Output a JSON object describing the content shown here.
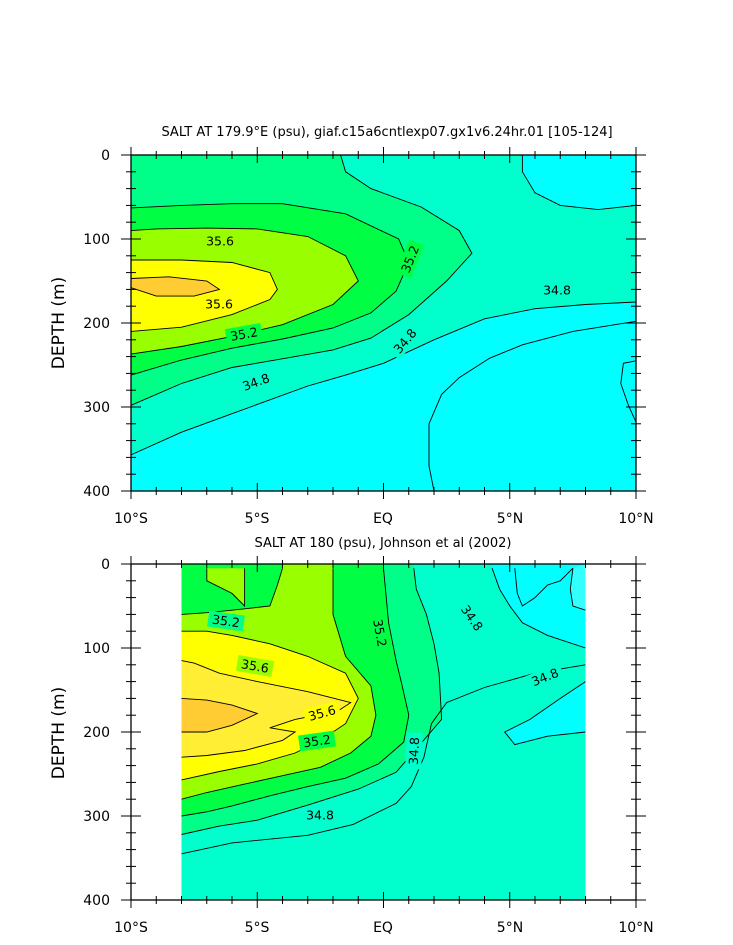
{
  "colors": {
    "below_34_8": "#00ffff",
    "34_8_to_35_0": "#00ffcc",
    "35_0_to_35_2": "#00ff88",
    "35_2_to_35_4": "#00ff44",
    "35_4_to_35_6": "#99ff00",
    "35_6_to_35_8": "#ffff00",
    "above_35_8": "#ffcc33",
    "above_34_8_top": "#33ffff",
    "contour_line": "#000000"
  },
  "chart_data": [
    {
      "type": "contour",
      "title": "SALT AT 179.9°E (psu), giaf.c15a6cntlexp07.gx1v6.24hr.01 [105-124]",
      "xlabel": "",
      "ylabel": "DEPTH (m)",
      "x_unit": "latitude",
      "xlim": [
        -10,
        10
      ],
      "ylim": [
        400,
        0
      ],
      "x_ticks": [
        -10,
        -5,
        0,
        5,
        10
      ],
      "x_tick_labels": [
        "10°S",
        "5°S",
        "EQ",
        "5°N",
        "10°N"
      ],
      "y_ticks": [
        0,
        100,
        200,
        300,
        400
      ],
      "y_tick_labels": [
        "0",
        "100",
        "200",
        "300",
        "400"
      ],
      "data_extent_lat": [
        -10,
        10
      ],
      "contour_labels": [
        "35.6",
        "35.6",
        "35.2",
        "35.2",
        "34.8",
        "34.8",
        "34.8"
      ],
      "contours": [
        {
          "level": 34.8,
          "points": [
            [
              -10,
              357
            ],
            [
              -8,
              330
            ],
            [
              -6,
              308
            ],
            [
              -3,
              275
            ],
            [
              -1.5,
              262
            ],
            [
              0,
              248
            ],
            [
              2,
              220
            ],
            [
              4,
              195
            ],
            [
              6,
              183
            ],
            [
              8,
              178
            ],
            [
              10,
              175
            ]
          ]
        },
        {
          "level": 35.0,
          "points": [
            [
              -10,
              298
            ],
            [
              -8,
              272
            ],
            [
              -6,
              253
            ],
            [
              -3.5,
              240
            ],
            [
              -2,
              232
            ],
            [
              -0.5,
              218
            ],
            [
              1,
              190
            ],
            [
              2.5,
              150
            ],
            [
              3.5,
              117
            ],
            [
              3,
              90
            ],
            [
              1.5,
              62
            ],
            [
              -0.5,
              40
            ],
            [
              -1.5,
              20
            ],
            [
              -1.7,
              0
            ]
          ]
        },
        {
          "level": 35.2,
          "points": [
            [
              -10,
              262
            ],
            [
              -8,
              244
            ],
            [
              -6,
              230
            ],
            [
              -4,
              219
            ],
            [
              -2,
              206
            ],
            [
              -0.5,
              188
            ],
            [
              0.5,
              162
            ],
            [
              1,
              128
            ],
            [
              0.6,
              100
            ],
            [
              -1.5,
              70
            ],
            [
              -4,
              58
            ],
            [
              -6,
              58
            ],
            [
              -8,
              60
            ],
            [
              -10,
              63
            ]
          ]
        },
        {
          "level": 35.4,
          "points": [
            [
              -10,
              237
            ],
            [
              -8,
              228
            ],
            [
              -6,
              216
            ],
            [
              -4,
              202
            ],
            [
              -2,
              178
            ],
            [
              -1,
              150
            ],
            [
              -1.5,
              120
            ],
            [
              -3,
              97
            ],
            [
              -5,
              88
            ],
            [
              -7,
              87
            ],
            [
              -9,
              88
            ],
            [
              -10,
              90
            ]
          ]
        },
        {
          "level": 35.6,
          "points": [
            [
              -10,
              210
            ],
            [
              -8,
              205
            ],
            [
              -6,
              190
            ],
            [
              -4.5,
              172
            ],
            [
              -4.2,
              160
            ],
            [
              -4.5,
              140
            ],
            [
              -6,
              128
            ],
            [
              -8,
              125
            ],
            [
              -10,
              125
            ]
          ]
        },
        {
          "level": 35.8,
          "points": [
            [
              -10,
              158
            ],
            [
              -9,
              168
            ],
            [
              -7.5,
              168
            ],
            [
              -6.5,
              160
            ],
            [
              -7,
              150
            ],
            [
              -8.5,
              145
            ],
            [
              -10,
              147
            ]
          ]
        },
        {
          "level": 34.8,
          "points": [
            [
              10,
              60
            ],
            [
              8.5,
              65
            ],
            [
              7,
              60
            ],
            [
              6,
              45
            ],
            [
              5.5,
              20
            ],
            [
              5.5,
              0
            ]
          ]
        },
        {
          "level": 34.8,
          "points": [
            [
              2,
              400
            ],
            [
              1.8,
              370
            ],
            [
              1.8,
              320
            ],
            [
              2.3,
              285
            ],
            [
              3,
              265
            ],
            [
              4.2,
              242
            ],
            [
              5.5,
              226
            ],
            [
              7.5,
              210
            ],
            [
              10,
              198
            ]
          ]
        },
        {
          "level": 34.6,
          "points": [
            [
              10,
              245
            ],
            [
              9.5,
              248
            ],
            [
              9.4,
              272
            ],
            [
              9.7,
              298
            ],
            [
              10,
              318
            ]
          ]
        }
      ]
    },
    {
      "type": "contour",
      "title": "SALT AT 180 (psu), Johnson et al (2002)",
      "xlabel": "",
      "ylabel": "DEPTH (m)",
      "x_unit": "latitude",
      "xlim": [
        -10,
        10
      ],
      "ylim": [
        400,
        0
      ],
      "x_ticks": [
        -10,
        -5,
        0,
        5,
        10
      ],
      "x_tick_labels": [
        "10°S",
        "5°S",
        "EQ",
        "5°N",
        "10°N"
      ],
      "y_ticks": [
        0,
        100,
        200,
        300,
        400
      ],
      "y_tick_labels": [
        "0",
        "100",
        "200",
        "300",
        "400"
      ],
      "data_extent_lat": [
        -8,
        8
      ],
      "contour_labels": [
        "35.2",
        "35.6",
        "35.6",
        "35.2",
        "34.8",
        "35.2",
        "34.8",
        "34.8",
        "34.8"
      ],
      "contours": [
        {
          "level": 34.8,
          "points": [
            [
              -8,
              345
            ],
            [
              -6,
              332
            ],
            [
              -3,
              323
            ],
            [
              -1.2,
              310
            ],
            [
              0.5,
              285
            ],
            [
              1.1,
              265
            ],
            [
              1.6,
              230
            ],
            [
              1.9,
              190
            ],
            [
              2.5,
              165
            ],
            [
              4,
              147
            ],
            [
              6,
              130
            ],
            [
              8,
              120
            ]
          ]
        },
        {
          "level": 35.0,
          "points": [
            [
              -8,
              322
            ],
            [
              -6.5,
              312
            ],
            [
              -5,
              305
            ],
            [
              -3,
              287
            ],
            [
              -1,
              268
            ],
            [
              0.5,
              248
            ],
            [
              1.3,
              220
            ],
            [
              2.3,
              185
            ],
            [
              2.2,
              130
            ],
            [
              2,
              95
            ],
            [
              1.7,
              60
            ],
            [
              1.3,
              30
            ],
            [
              1.2,
              5
            ]
          ]
        },
        {
          "level": 35.2,
          "points": [
            [
              -8,
              300
            ],
            [
              -7,
              295
            ],
            [
              -6,
              288
            ],
            [
              -4.5,
              276
            ],
            [
              -3,
              265
            ],
            [
              -1.5,
              255
            ],
            [
              -0.2,
              238
            ],
            [
              0.8,
              212
            ],
            [
              1,
              180
            ],
            [
              0.7,
              140
            ],
            [
              0.5,
              115
            ],
            [
              0.2,
              70
            ],
            [
              0,
              5
            ]
          ]
        },
        {
          "level": 35.4,
          "points": [
            [
              -8,
              280
            ],
            [
              -7,
              272
            ],
            [
              -5.5,
              262
            ],
            [
              -4,
              252
            ],
            [
              -2.5,
              242
            ],
            [
              -1.3,
              225
            ],
            [
              -0.5,
              205
            ],
            [
              -0.3,
              180
            ],
            [
              -0.5,
              145
            ],
            [
              -1.5,
              110
            ],
            [
              -2,
              60
            ],
            [
              -2,
              5
            ]
          ]
        },
        {
          "level": 35.6,
          "points": [
            [
              -8,
              257
            ],
            [
              -6.5,
              247
            ],
            [
              -5,
              238
            ],
            [
              -3.5,
              225
            ],
            [
              -2.5,
              210
            ],
            [
              -1.5,
              190
            ],
            [
              -1,
              160
            ],
            [
              -1.5,
              130
            ],
            [
              -3,
              110
            ],
            [
              -4.5,
              95
            ],
            [
              -6,
              85
            ],
            [
              -7,
              80
            ],
            [
              -8,
              80
            ]
          ]
        },
        {
          "level": 35.2,
          "points": [
            [
              -8,
              60
            ],
            [
              -7,
              58
            ],
            [
              -6,
              55
            ],
            [
              -4.5,
              50
            ],
            [
              -4.2,
              25
            ],
            [
              -4,
              5
            ]
          ]
        },
        {
          "level": 35.8,
          "points": [
            [
              -8,
              230
            ],
            [
              -7,
              228
            ],
            [
              -5.5,
              222
            ],
            [
              -4,
              210
            ],
            [
              -3.5,
              200
            ],
            [
              -4.5,
              195
            ],
            [
              -3.5,
              185
            ],
            [
              -1.8,
              175
            ],
            [
              -1.3,
              165
            ],
            [
              -3,
              152
            ],
            [
              -5,
              140
            ],
            [
              -6.5,
              130
            ],
            [
              -7.5,
              118
            ],
            [
              -8,
              115
            ]
          ]
        },
        {
          "level": 36.0,
          "points": [
            [
              -8,
              200
            ],
            [
              -7,
              200
            ],
            [
              -6,
              192
            ],
            [
              -5,
              178
            ],
            [
              -6,
              168
            ],
            [
              -7,
              162
            ],
            [
              -8,
              160
            ]
          ]
        },
        {
          "level": 36.0,
          "points": [
            [
              -7,
              5
            ],
            [
              -7,
              20
            ],
            [
              -6,
              35
            ],
            [
              -5.5,
              50
            ],
            [
              -5.5,
              5
            ]
          ]
        },
        {
          "level": 34.8,
          "points": [
            [
              4.3,
              5
            ],
            [
              4.6,
              30
            ],
            [
              5,
              50
            ],
            [
              5.5,
              70
            ],
            [
              6.5,
              85
            ],
            [
              8,
              100
            ]
          ]
        },
        {
          "level": 34.8,
          "points": [
            [
              5.2,
              5
            ],
            [
              5.3,
              35
            ],
            [
              5.5,
              50
            ],
            [
              6,
              40
            ],
            [
              6.5,
              25
            ],
            [
              7,
              20
            ],
            [
              7.5,
              5
            ]
          ]
        },
        {
          "level": 34.6,
          "points": [
            [
              8,
              140
            ],
            [
              7,
              160
            ],
            [
              5.8,
              185
            ],
            [
              4.8,
              200
            ],
            [
              5.2,
              215
            ],
            [
              6.5,
              205
            ],
            [
              8,
              200
            ]
          ]
        },
        {
          "level": 34.6,
          "points": [
            [
              7.5,
              5
            ],
            [
              7.4,
              30
            ],
            [
              7.5,
              50
            ],
            [
              8,
              55
            ]
          ]
        }
      ]
    }
  ]
}
